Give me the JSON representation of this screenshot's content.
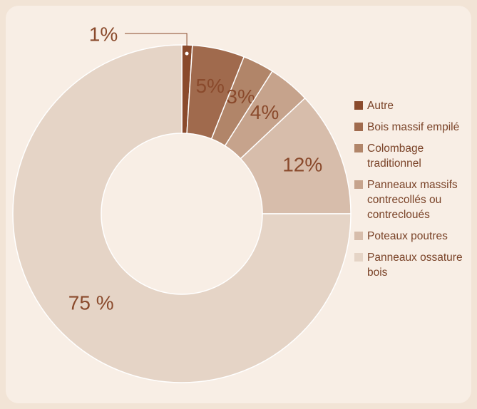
{
  "chart_data": {
    "type": "donut",
    "categories": [
      "Autre",
      "Bois massif empilé",
      "Colombage traditionnel",
      "Panneaux massifs contrecollés ou contrecloués",
      "Poteaux poutres",
      "Panneaux ossature bois"
    ],
    "values": [
      1,
      5,
      3,
      4,
      12,
      75
    ],
    "value_labels": [
      "1%",
      "5%",
      "3%",
      "4%",
      "12%",
      "75 %"
    ],
    "colors": [
      "#8a4a2c",
      "#a06a4d",
      "#b18569",
      "#c6a38c",
      "#d7bdab",
      "#e5d4c6"
    ],
    "legend": "right"
  }
}
